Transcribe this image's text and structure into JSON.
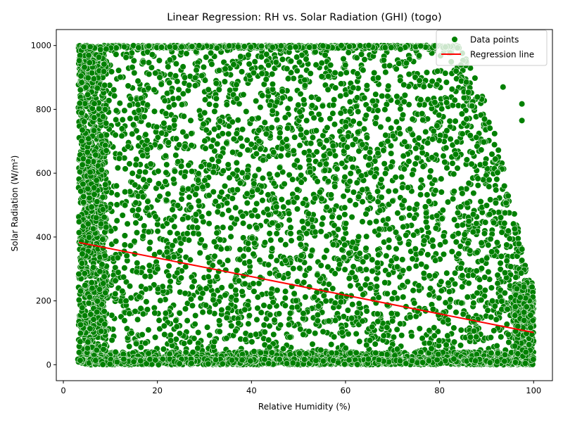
{
  "chart_data": {
    "type": "scatter",
    "title": "Linear Regression: RH vs. Solar Radiation (GHI) (togo)",
    "xlabel": "Relative Humidity (%)",
    "ylabel": "Solar Radiation (W/m²)",
    "xlim": [
      -1.5,
      104.0
    ],
    "ylim": [
      -50,
      1050
    ],
    "xticks": [
      0,
      20,
      40,
      60,
      80,
      100
    ],
    "yticks": [
      0,
      200,
      400,
      600,
      800,
      1000
    ],
    "grid": false,
    "legend_position": "top-right",
    "series": [
      {
        "name": "Data points",
        "kind": "scatter",
        "color": "#008000",
        "edge_color": "#ffffff",
        "x_range": [
          3,
          100
        ],
        "y_range": [
          0,
          1000
        ],
        "note_points": [
          [
            97.5,
            817
          ],
          [
            97.5,
            765
          ],
          [
            93.5,
            870
          ],
          [
            97.5,
            327
          ],
          [
            90.5,
            558
          ]
        ]
      },
      {
        "name": "Regression line",
        "kind": "line",
        "color": "#ff0000",
        "x": [
          3.3,
          100
        ],
        "y": [
          383,
          101
        ]
      }
    ]
  }
}
